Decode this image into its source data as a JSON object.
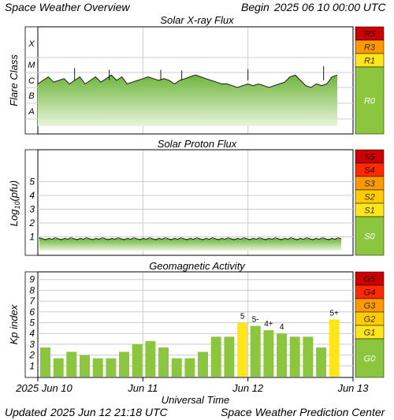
{
  "header": {
    "title": "Space Weather Overview",
    "begin_label": "Begin",
    "begin_time": "2025 06 10 00:00 UTC",
    "updated_label": "Updated",
    "updated_time": "2025 Jun 12 21:18 UTC",
    "credit": "Space Weather Prediction Center"
  },
  "x_axis": {
    "label": "Universal Time",
    "ticks": [
      {
        "day": 0,
        "label": "2025 Jun 10"
      },
      {
        "day": 1,
        "label": "Jun 11"
      },
      {
        "day": 2,
        "label": "Jun 12"
      },
      {
        "day": 3,
        "label": "Jun 13"
      }
    ]
  },
  "colors": {
    "green": "#8cc63f",
    "yellow": "#ffe51c",
    "orange": "#ff9900",
    "red": "#ff2a00",
    "darkred": "#cc0000",
    "grid": "#cccccc"
  },
  "chart_data": [
    {
      "type": "area",
      "title": "Solar X-ray Flux",
      "ylabel": "Flare Class",
      "y_classes": [
        "A",
        "B",
        "C",
        "M",
        "X"
      ],
      "x_unit": "days since 2025 06 10 00:00 UTC",
      "xlim": [
        0,
        3
      ],
      "series": [
        {
          "x": [
            0,
            0.05,
            0.1,
            0.15,
            0.2,
            0.25,
            0.3,
            0.35,
            0.4,
            0.45,
            0.5,
            0.55,
            0.6,
            0.65,
            0.7,
            0.75,
            0.8,
            0.85,
            0.9,
            0.95,
            1.0,
            1.05,
            1.1,
            1.15,
            1.2,
            1.25,
            1.3,
            1.35,
            1.4,
            1.45,
            1.5,
            1.55,
            1.6,
            1.65,
            1.7,
            1.75,
            1.8,
            1.85,
            1.9,
            1.95,
            2.0,
            2.05,
            2.1,
            2.15,
            2.2,
            2.25,
            2.3,
            2.35,
            2.4,
            2.45,
            2.5,
            2.55,
            2.6,
            2.65,
            2.7,
            2.75,
            2.8,
            2.85
          ],
          "flux_log10": [
            -6.3,
            -6.2,
            -6.1,
            -6.25,
            -6.2,
            -6.15,
            -6.3,
            -6.2,
            -6.1,
            -6.3,
            -6.2,
            -6.1,
            -6.25,
            -6.15,
            -6.05,
            -6.2,
            -6.1,
            -6.3,
            -6.25,
            -6.2,
            -6.15,
            -6.1,
            -6.15,
            -6.2,
            -6.15,
            -6.2,
            -6.3,
            -6.2,
            -6.15,
            -6.1,
            -6.05,
            -6.1,
            -6.15,
            -6.2,
            -6.25,
            -6.3,
            -6.3,
            -6.35,
            -6.4,
            -6.35,
            -6.3,
            -6.35,
            -6.3,
            -6.35,
            -6.4,
            -6.35,
            -6.3,
            -6.25,
            -6.1,
            -6.05,
            -6.2,
            -6.35,
            -6.4,
            -6.3,
            -6.35,
            -6.3,
            -6.1,
            -6.05
          ]
        }
      ],
      "spikes": [
        {
          "x": 0.35,
          "flux_log10": -5.85
        },
        {
          "x": 0.68,
          "flux_log10": -5.9
        },
        {
          "x": 1.17,
          "flux_log10": -5.9
        },
        {
          "x": 1.37,
          "flux_log10": -5.92
        },
        {
          "x": 2.0,
          "flux_log10": -5.88
        },
        {
          "x": 2.72,
          "flux_log10": -5.8
        }
      ],
      "scale": [
        {
          "label": "R5",
          "color": "#cc0000"
        },
        {
          "label": "R3",
          "color": "#ff9900"
        },
        {
          "label": "R1",
          "color": "#ffe51c"
        },
        {
          "label": "R0",
          "color": "#8cc63f"
        }
      ]
    },
    {
      "type": "area",
      "title": "Solar Proton Flux",
      "ylabel": "Log10(pfu)",
      "ylabel_main": "Log",
      "ylabel_sub": "10",
      "ylabel_tail": "(pfu)",
      "yticks": [
        "1",
        "2",
        "3",
        "4",
        "5"
      ],
      "ylim": [
        0,
        5.6
      ],
      "x_unit": "days since 2025 06 10 00:00 UTC",
      "xlim": [
        0,
        3
      ],
      "baseline_log10_pfu": -0.35,
      "scale": [
        {
          "label": "S5",
          "color": "#cc0000"
        },
        {
          "label": "S4",
          "color": "#ff2a00"
        },
        {
          "label": "S3",
          "color": "#ff9900"
        },
        {
          "label": "S2",
          "color": "#ffcc00"
        },
        {
          "label": "S1",
          "color": "#ffe51c"
        },
        {
          "label": "S0",
          "color": "#8cc63f"
        }
      ]
    },
    {
      "type": "bar",
      "title": "Geomagnetic Activity",
      "ylabel": "Kp index",
      "yticks": [
        "1",
        "2",
        "3",
        "4",
        "5",
        "6",
        "7",
        "8",
        "9"
      ],
      "ylim": [
        0,
        9.8
      ],
      "x_unit": "days since 2025 06 10 00:00 UTC",
      "bar_hours": 3,
      "values": [
        2.7,
        1.7,
        2.3,
        2.0,
        1.7,
        1.7,
        2.3,
        3.0,
        3.3,
        2.7,
        1.7,
        1.7,
        2.3,
        3.7,
        3.7,
        5.0,
        4.7,
        4.3,
        4.0,
        3.7,
        3.7,
        2.7,
        5.3
      ],
      "labels": [
        "",
        "",
        "",
        "",
        "",
        "",
        "",
        "",
        "",
        "",
        "",
        "",
        "",
        "",
        "",
        "5",
        "5-",
        "4+",
        "4",
        "",
        "",
        "",
        "5+"
      ],
      "scale": [
        {
          "label": "G5",
          "color": "#cc0000"
        },
        {
          "label": "G4",
          "color": "#ff2a00"
        },
        {
          "label": "G3",
          "color": "#ff9900"
        },
        {
          "label": "G2",
          "color": "#ffcc00"
        },
        {
          "label": "G1",
          "color": "#ffe51c"
        },
        {
          "label": "G0",
          "color": "#8cc63f"
        }
      ]
    }
  ]
}
